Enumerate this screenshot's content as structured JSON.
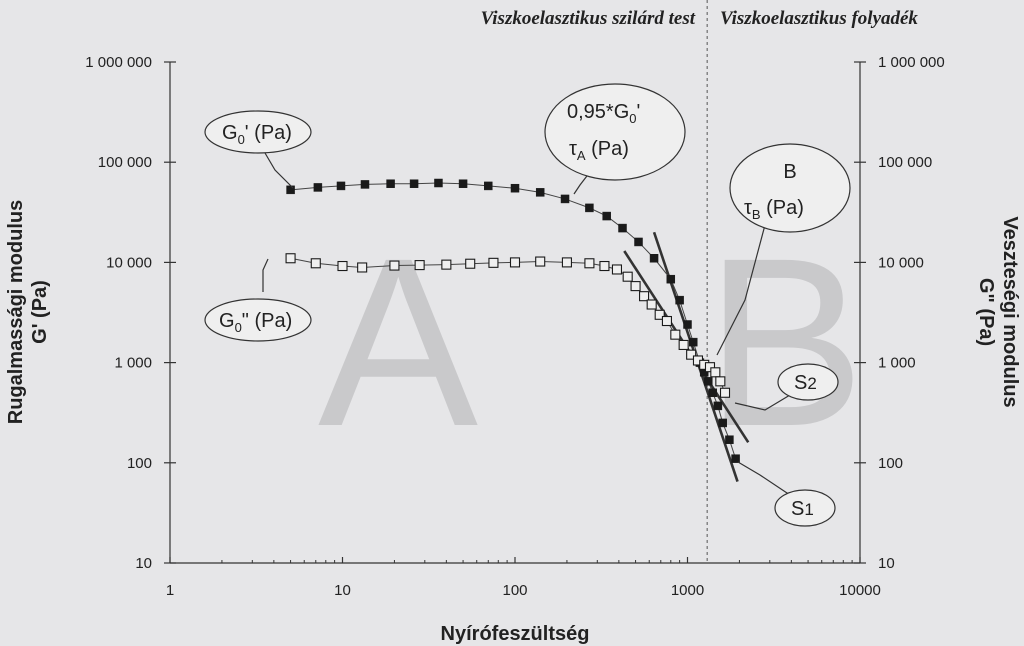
{
  "chart_data": {
    "type": "scatter",
    "xscale": "log",
    "yscale": "log",
    "xlim": [
      1,
      10000
    ],
    "ylim": [
      10,
      1000000
    ],
    "xlabel": "Nyírófeszültség",
    "ylabel_left": [
      "Rugalmassági modulus",
      "G' (Pa)"
    ],
    "ylabel_right": [
      "Veszteségi modulus",
      "G\" (Pa)"
    ],
    "x_ticks": [
      1,
      10,
      100,
      1000,
      10000
    ],
    "x_tick_labels": [
      "1",
      "10",
      "100",
      "1000",
      "10000"
    ],
    "y_ticks": [
      10,
      100,
      1000,
      10000,
      100000,
      1000000
    ],
    "y_tick_labels": [
      "10",
      "100",
      "1 000",
      "10 000",
      "100 000",
      "1 000 000"
    ],
    "grid": false,
    "region_titles": [
      "Viszkoelasztikus szilárd test",
      "Viszkoelasztikus folyadék"
    ],
    "divider_x": 1300,
    "region_letters": [
      "A",
      "B"
    ],
    "series": [
      {
        "marker": "filled-square",
        "x": [
          5,
          7.2,
          9.8,
          13.5,
          19,
          26,
          36,
          50,
          70,
          100,
          140,
          195,
          270,
          340,
          420,
          520,
          640,
          800,
          900,
          1000,
          1080,
          1180,
          1250,
          1320,
          1400,
          1500,
          1600,
          1750,
          1900
        ],
        "y": [
          53000,
          56000,
          58000,
          60000,
          61000,
          61000,
          62000,
          61000,
          58000,
          55000,
          50000,
          43000,
          35000,
          29000,
          22000,
          16000,
          11000,
          6800,
          4200,
          2400,
          1600,
          1000,
          800,
          650,
          500,
          370,
          250,
          170,
          110
        ]
      },
      {
        "marker": "open-square",
        "x": [
          5,
          7,
          10,
          13,
          20,
          28,
          40,
          55,
          75,
          100,
          140,
          200,
          270,
          330,
          390,
          450,
          500,
          560,
          620,
          690,
          760,
          850,
          950,
          1050,
          1150,
          1250,
          1350,
          1450,
          1550,
          1650
        ],
        "y": [
          11000,
          9800,
          9200,
          8900,
          9300,
          9400,
          9500,
          9700,
          9900,
          10000,
          10200,
          10000,
          9800,
          9200,
          8500,
          7200,
          5800,
          4600,
          3800,
          3000,
          2600,
          1900,
          1500,
          1200,
          1050,
          950,
          900,
          800,
          650,
          500
        ]
      }
    ],
    "tangent_lines": [
      {
        "x": [
          640,
          1950
        ],
        "y": [
          20000,
          65
        ]
      },
      {
        "x": [
          430,
          2250
        ],
        "y": [
          13000,
          160
        ]
      }
    ],
    "annotations": [
      {
        "main": "G",
        "sub": "0",
        "rest": "' (Pa)"
      },
      {
        "main": "G",
        "sub": "0",
        "rest": "\" (Pa)"
      },
      {
        "line1_main": "0,95*G",
        "line1_sub": "0",
        "line1_rest": "'",
        "line2_main": "τ",
        "line2_sub": "A",
        "line2_rest": " (Pa)"
      },
      {
        "line1": "B",
        "line2_main": "τ",
        "line2_sub": "B",
        "line2_rest": " (Pa)"
      },
      {
        "main": "S",
        "sub": "2"
      },
      {
        "main": "S",
        "sub": "1"
      }
    ]
  }
}
